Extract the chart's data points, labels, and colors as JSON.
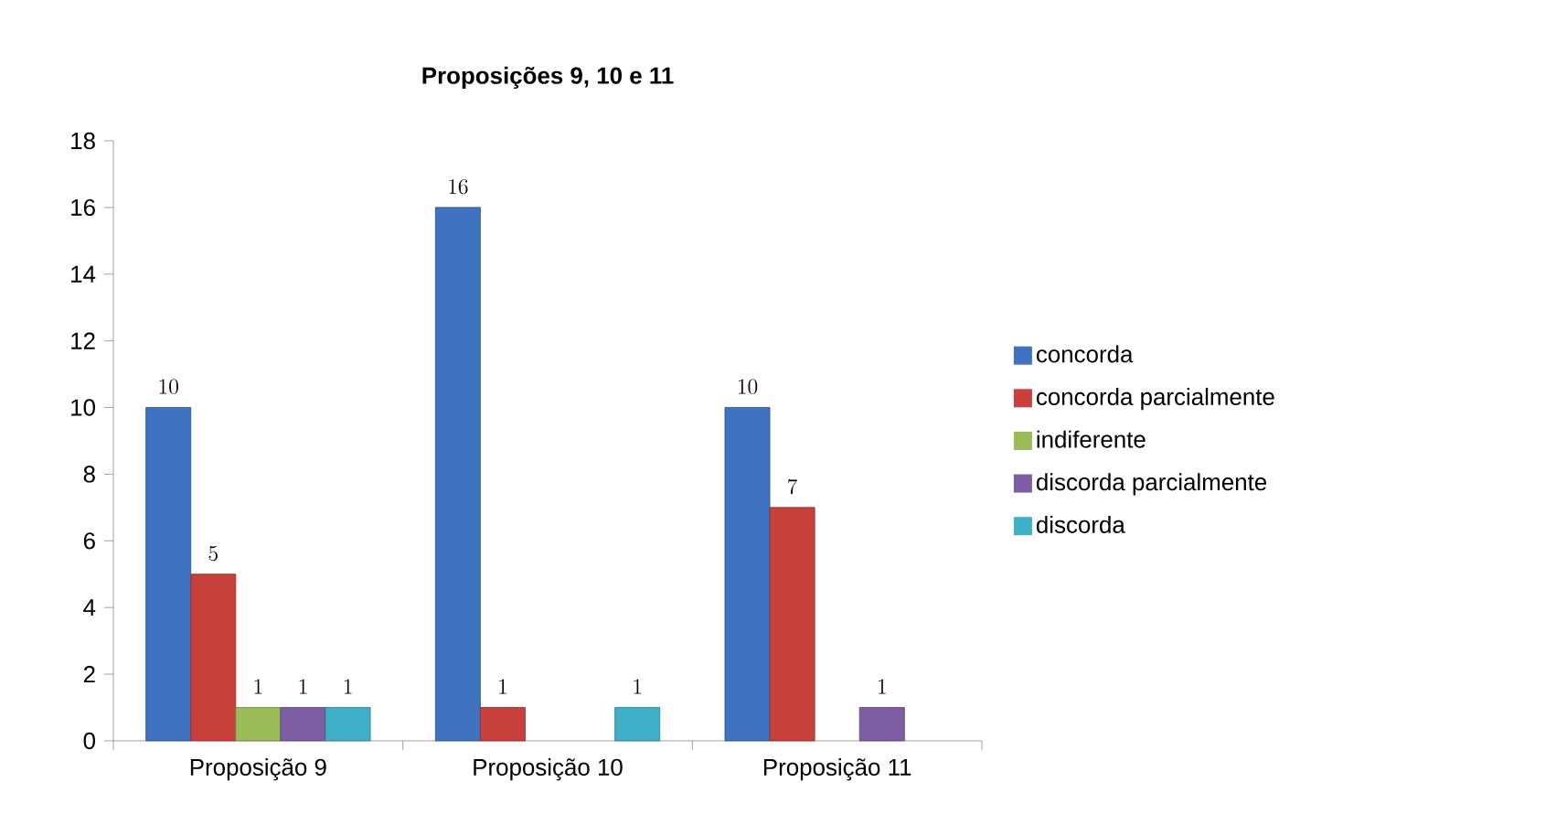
{
  "chart_data": {
    "type": "bar",
    "title": "Proposições 9, 10 e 11",
    "categories": [
      "Proposição 9",
      "Proposição 10",
      "Proposição 11"
    ],
    "series": [
      {
        "name": "concorda",
        "color": "#3f72c0",
        "values": [
          10,
          16,
          10
        ]
      },
      {
        "name": "concorda parcialmente",
        "color": "#c8403c",
        "values": [
          5,
          1,
          7
        ]
      },
      {
        "name": "indiferente",
        "color": "#9bbb59",
        "values": [
          1,
          null,
          null
        ]
      },
      {
        "name": "discorda parcialmente",
        "color": "#7d5ea3",
        "values": [
          1,
          null,
          1
        ]
      },
      {
        "name": "discorda",
        "color": "#40b0c8",
        "values": [
          1,
          1,
          null
        ]
      }
    ],
    "ylim": [
      0,
      18
    ],
    "yticks": [
      0,
      2,
      4,
      6,
      8,
      10,
      12,
      14,
      16,
      18
    ],
    "data_labels": true,
    "legend": "right",
    "grid": false
  }
}
